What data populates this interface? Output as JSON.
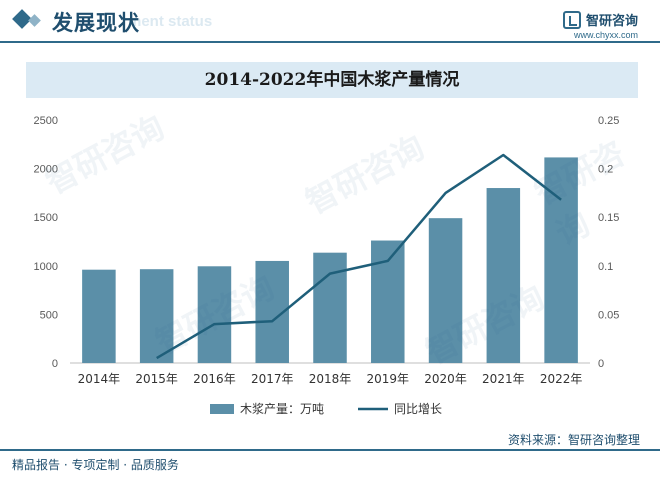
{
  "header": {
    "section_title": "发展现状",
    "section_subtitle": "ment status",
    "brand_name": "智研咨询",
    "brand_url": "www.chyxx.com"
  },
  "watermark": "智研咨询",
  "chart_data": {
    "type": "bar",
    "title": "2014-2022年中国木浆产量情况",
    "categories": [
      "2014年",
      "2015年",
      "2016年",
      "2017年",
      "2018年",
      "2019年",
      "2020年",
      "2021年",
      "2022年"
    ],
    "series": [
      {
        "name": "木浆产量：万吨",
        "type": "bar",
        "axis": "left",
        "color": "#5b8fa8",
        "values": [
          960,
          965,
          995,
          1050,
          1135,
          1260,
          1490,
          1800,
          2115
        ]
      },
      {
        "name": "同比增长",
        "type": "line",
        "axis": "right",
        "color": "#1f5f7a",
        "values": [
          null,
          0.005,
          0.04,
          0.043,
          0.092,
          0.105,
          0.175,
          0.214,
          0.168
        ]
      }
    ],
    "y_left": {
      "min": 0,
      "max": 2500,
      "ticks": [
        "0",
        "500",
        "1000",
        "1500",
        "2000",
        "2500"
      ]
    },
    "y_right": {
      "min": 0,
      "max": 0.25,
      "ticks": [
        "0",
        "0.05",
        "0.1",
        "0.15",
        "0.2",
        "0.25"
      ]
    },
    "legend_position": "bottom",
    "grid": false
  },
  "source": "资料来源：智研咨询整理",
  "footer": "精品报告 · 专项定制 · 品质服务"
}
